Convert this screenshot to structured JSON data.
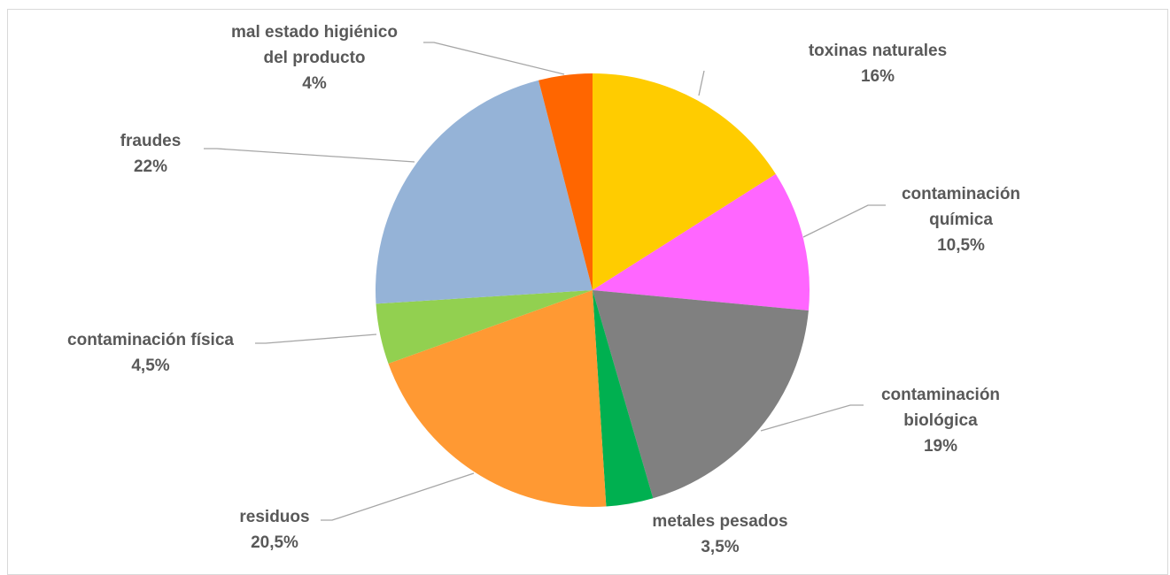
{
  "chart_data": {
    "type": "pie",
    "title": "",
    "slices": [
      {
        "name": "toxinas naturales",
        "lines": [
          "toxinas naturales"
        ],
        "label": "16%",
        "value": 16,
        "color": "#FFCC00"
      },
      {
        "name": "contaminación química",
        "lines": [
          "contaminación",
          "química"
        ],
        "label": "10,5%",
        "value": 10.5,
        "color": "#FF66FF"
      },
      {
        "name": "contaminación biológica",
        "lines": [
          "contaminación",
          "biológica"
        ],
        "label": "19%",
        "value": 19,
        "color": "#808080"
      },
      {
        "name": "metales pesados",
        "lines": [
          "metales pesados"
        ],
        "label": "3,5%",
        "value": 3.5,
        "color": "#00B050"
      },
      {
        "name": "residuos",
        "lines": [
          "residuos"
        ],
        "label": "20,5%",
        "value": 20.5,
        "color": "#FF9933"
      },
      {
        "name": "contaminación física",
        "lines": [
          "contaminación física"
        ],
        "label": "4,5%",
        "value": 4.5,
        "color": "#92D050"
      },
      {
        "name": "fraudes",
        "lines": [
          "fraudes"
        ],
        "label": "22%",
        "value": 22,
        "color": "#95B3D7"
      },
      {
        "name": "mal estado higiénico del producto",
        "lines": [
          "mal estado higiénico",
          "del producto"
        ],
        "label": "4%",
        "value": 4,
        "color": "#FF6600"
      }
    ]
  }
}
